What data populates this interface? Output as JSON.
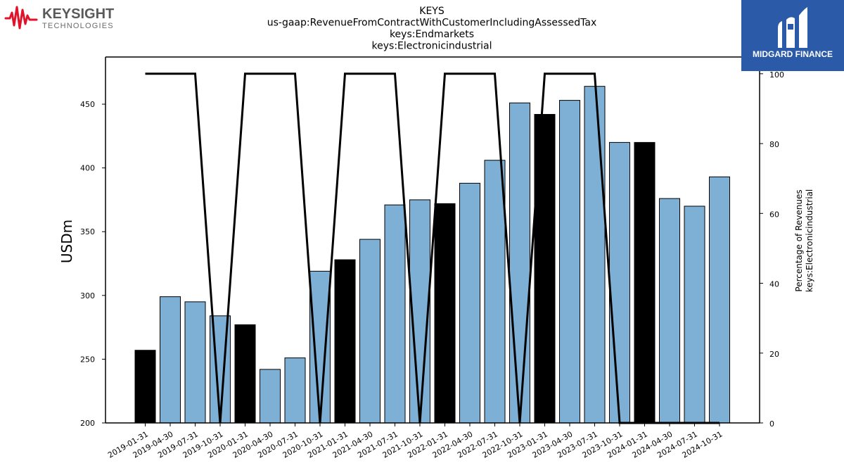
{
  "branding": {
    "company_logo_text": "KEYSIGHT",
    "company_logo_subtext": "TECHNOLOGIES",
    "company_logo_color": "#e1122a",
    "partner_logo_text": "MIDGARD FINANCE",
    "partner_logo_color": "#2a5aa8"
  },
  "chart_data": {
    "type": "bar",
    "title": [
      "KEYS",
      "us-gaap:RevenueFromContractWithCustomerIncludingAssessedTax",
      "keys:Endmarkets",
      "keys:Electronicindustrial"
    ],
    "ylabel": "USDm",
    "y2label": [
      "Percentage of Revenues",
      "keys:Electronicindustrial"
    ],
    "ylim": [
      200,
      487
    ],
    "y2lim": [
      0,
      104.8
    ],
    "yticks": [
      200,
      250,
      300,
      350,
      400,
      450
    ],
    "y2ticks": [
      0,
      20,
      40,
      60,
      80,
      100
    ],
    "categories": [
      "2019-01-31",
      "2019-04-30",
      "2019-07-31",
      "2019-10-31",
      "2020-01-31",
      "2020-04-30",
      "2020-07-31",
      "2020-10-31",
      "2021-01-31",
      "2021-04-30",
      "2021-07-31",
      "2021-10-31",
      "2022-01-31",
      "2022-04-30",
      "2022-07-31",
      "2022-10-31",
      "2023-01-31",
      "2023-04-30",
      "2023-07-31",
      "2023-10-31",
      "2024-01-31",
      "2024-04-30",
      "2024-07-31",
      "2024-10-31"
    ],
    "series": [
      {
        "type": "bar",
        "values": [
          257,
          299,
          295,
          284,
          277,
          242,
          251,
          319,
          328,
          344,
          371,
          375,
          372,
          388,
          406,
          451,
          442,
          453,
          464,
          420,
          420,
          376,
          370,
          393
        ],
        "highlight": [
          true,
          false,
          false,
          false,
          true,
          false,
          false,
          false,
          true,
          false,
          false,
          false,
          true,
          false,
          false,
          false,
          true,
          false,
          false,
          false,
          true,
          false,
          false,
          false
        ],
        "color": "#7eb0d5",
        "highlight_color": "#000000"
      },
      {
        "type": "line",
        "axis": "right",
        "values": [
          100,
          100,
          100,
          0,
          100,
          100,
          100,
          0,
          100,
          100,
          100,
          0,
          100,
          100,
          100,
          0,
          100,
          100,
          100,
          0,
          0,
          0,
          0,
          0
        ],
        "color": "#000000"
      }
    ],
    "grid": false,
    "legend": "none"
  }
}
